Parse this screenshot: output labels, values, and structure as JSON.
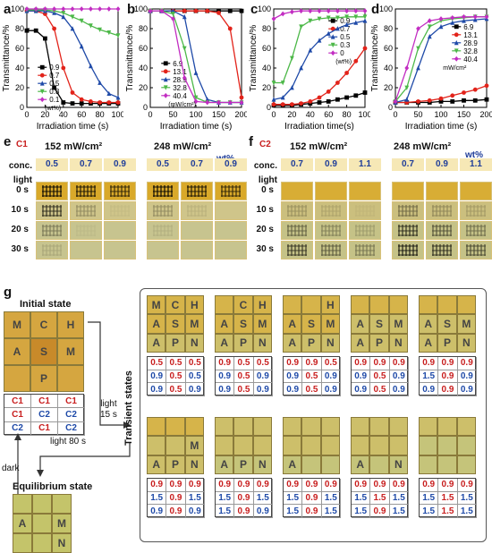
{
  "panel_labels": [
    "a",
    "b",
    "c",
    "d",
    "e",
    "f",
    "g"
  ],
  "chart_data": [
    {
      "type": "line",
      "title": "",
      "xlabel": "Irradiation time (s)",
      "ylabel": "Transmittance/%",
      "xlim": [
        0,
        100
      ],
      "ylim": [
        0,
        100
      ],
      "xticks": [
        0,
        20,
        40,
        60,
        80,
        100
      ],
      "yticks": [
        0,
        20,
        40,
        60,
        80,
        100
      ],
      "legend_unit": "(wt%)",
      "series": [
        {
          "name": "0.9",
          "color": "#000000",
          "marker": "square",
          "x": [
            0,
            10,
            20,
            30,
            40,
            50,
            60,
            70,
            80,
            90,
            100
          ],
          "y": [
            78,
            78,
            70,
            20,
            5,
            4,
            4,
            4,
            4,
            4,
            4
          ]
        },
        {
          "name": "0.7",
          "color": "#e2231a",
          "marker": "circle",
          "x": [
            0,
            10,
            20,
            30,
            40,
            50,
            60,
            70,
            80,
            90,
            100
          ],
          "y": [
            98,
            98,
            95,
            80,
            40,
            15,
            8,
            6,
            5,
            5,
            5
          ]
        },
        {
          "name": "0.5",
          "color": "#1f4aa8",
          "marker": "triangle",
          "x": [
            0,
            10,
            20,
            30,
            40,
            50,
            60,
            70,
            80,
            90,
            100
          ],
          "y": [
            98,
            98,
            98,
            96,
            92,
            80,
            62,
            42,
            25,
            14,
            10
          ]
        },
        {
          "name": "0.3",
          "color": "#4cb848",
          "marker": "triangle-down",
          "x": [
            0,
            10,
            20,
            30,
            40,
            50,
            60,
            70,
            80,
            90,
            100
          ],
          "y": [
            99,
            99,
            99,
            98,
            96,
            92,
            88,
            83,
            79,
            76,
            73
          ]
        },
        {
          "name": "0.1",
          "color": "#c22dc2",
          "marker": "diamond",
          "x": [
            0,
            10,
            20,
            30,
            40,
            50,
            60,
            70,
            80,
            90,
            100
          ],
          "y": [
            100,
            100,
            100,
            100,
            100,
            100,
            100,
            100,
            100,
            100,
            100
          ]
        }
      ]
    },
    {
      "type": "line",
      "title": "",
      "xlabel": "Irradiation time (s)",
      "ylabel": "Transmittance/%",
      "xlim": [
        0,
        200
      ],
      "ylim": [
        0,
        100
      ],
      "xticks": [
        0,
        50,
        100,
        150,
        200
      ],
      "yticks": [
        0,
        20,
        40,
        60,
        80,
        100
      ],
      "legend_unit": "(mW/cm²)",
      "series": [
        {
          "name": "6.9",
          "color": "#000000",
          "marker": "square",
          "x": [
            0,
            25,
            50,
            75,
            100,
            125,
            150,
            175,
            200
          ],
          "y": [
            98,
            98,
            98,
            98,
            98,
            98,
            98,
            98,
            98
          ]
        },
        {
          "name": "13.1",
          "color": "#e2231a",
          "marker": "circle",
          "x": [
            0,
            25,
            50,
            75,
            100,
            125,
            150,
            175,
            200
          ],
          "y": [
            98,
            98,
            98,
            98,
            98,
            98,
            96,
            80,
            10
          ]
        },
        {
          "name": "28.9",
          "color": "#1f4aa8",
          "marker": "triangle",
          "x": [
            0,
            25,
            50,
            75,
            100,
            125,
            150,
            175,
            200
          ],
          "y": [
            98,
            98,
            98,
            92,
            35,
            8,
            5,
            5,
            5
          ]
        },
        {
          "name": "32.8",
          "color": "#4cb848",
          "marker": "triangle-down",
          "x": [
            0,
            25,
            50,
            75,
            100,
            125,
            150,
            175,
            200
          ],
          "y": [
            98,
            98,
            95,
            60,
            10,
            5,
            5,
            5,
            5
          ]
        },
        {
          "name": "40.4",
          "color": "#c22dc2",
          "marker": "diamond",
          "x": [
            0,
            25,
            50,
            75,
            100,
            125,
            150,
            175,
            200
          ],
          "y": [
            98,
            98,
            90,
            30,
            6,
            5,
            5,
            5,
            5
          ]
        }
      ]
    },
    {
      "type": "line",
      "title": "",
      "xlabel": "Irradiation time(s)",
      "ylabel": "Transmittance/%",
      "xlim": [
        0,
        100
      ],
      "ylim": [
        0,
        100
      ],
      "xticks": [
        0,
        20,
        40,
        60,
        80,
        100
      ],
      "yticks": [
        0,
        20,
        40,
        60,
        80,
        100
      ],
      "legend_unit": "(wt%)",
      "series": [
        {
          "name": "0.9",
          "color": "#000000",
          "marker": "square",
          "x": [
            0,
            10,
            20,
            30,
            40,
            50,
            60,
            70,
            80,
            90,
            100
          ],
          "y": [
            2,
            2,
            2,
            3,
            4,
            5,
            6,
            8,
            10,
            12,
            15
          ]
        },
        {
          "name": "0.7",
          "color": "#e2231a",
          "marker": "circle",
          "x": [
            0,
            10,
            20,
            30,
            40,
            50,
            60,
            70,
            80,
            90,
            100
          ],
          "y": [
            3,
            3,
            3,
            4,
            6,
            10,
            16,
            25,
            35,
            47,
            60
          ]
        },
        {
          "name": "0.5",
          "color": "#1f4aa8",
          "marker": "triangle",
          "x": [
            0,
            10,
            20,
            30,
            40,
            50,
            60,
            70,
            80,
            90,
            100
          ],
          "y": [
            8,
            10,
            20,
            40,
            58,
            68,
            75,
            80,
            84,
            86,
            88
          ]
        },
        {
          "name": "0.3",
          "color": "#4cb848",
          "marker": "triangle-down",
          "x": [
            0,
            10,
            20,
            30,
            40,
            50,
            60,
            70,
            80,
            90,
            100
          ],
          "y": [
            25,
            25,
            50,
            82,
            88,
            90,
            91,
            91,
            92,
            92,
            92
          ]
        },
        {
          "name": "0",
          "color": "#c22dc2",
          "marker": "diamond",
          "x": [
            0,
            10,
            20,
            30,
            40,
            50,
            60,
            70,
            80,
            90,
            100
          ],
          "y": [
            90,
            95,
            97,
            98,
            98,
            98,
            98,
            98,
            98,
            98,
            98
          ]
        }
      ]
    },
    {
      "type": "line",
      "title": "",
      "xlabel": "Irradiation time (s)",
      "ylabel": "Transmittance/%",
      "xlim": [
        0,
        200
      ],
      "ylim": [
        0,
        100
      ],
      "xticks": [
        0,
        50,
        100,
        150,
        200
      ],
      "yticks": [
        0,
        20,
        40,
        60,
        80,
        100
      ],
      "legend_unit": "mW/cm²",
      "series": [
        {
          "name": "6.9",
          "color": "#000000",
          "marker": "square",
          "x": [
            0,
            25,
            50,
            75,
            100,
            125,
            150,
            175,
            200
          ],
          "y": [
            5,
            5,
            5,
            5,
            6,
            6,
            7,
            7,
            8
          ]
        },
        {
          "name": "13.1",
          "color": "#e2231a",
          "marker": "circle",
          "x": [
            0,
            25,
            50,
            75,
            100,
            125,
            150,
            175,
            200
          ],
          "y": [
            5,
            5,
            6,
            7,
            9,
            12,
            15,
            18,
            22
          ]
        },
        {
          "name": "28.9",
          "color": "#1f4aa8",
          "marker": "triangle",
          "x": [
            0,
            25,
            50,
            75,
            100,
            125,
            150,
            175,
            200
          ],
          "y": [
            5,
            8,
            40,
            72,
            82,
            86,
            88,
            89,
            90
          ]
        },
        {
          "name": "32.8",
          "color": "#4cb848",
          "marker": "triangle-down",
          "x": [
            0,
            25,
            50,
            75,
            100,
            125,
            150,
            175,
            200
          ],
          "y": [
            6,
            20,
            60,
            82,
            88,
            90,
            91,
            92,
            92
          ]
        },
        {
          "name": "40.4",
          "color": "#c22dc2",
          "marker": "diamond",
          "x": [
            0,
            25,
            50,
            75,
            100,
            125,
            150,
            175,
            200
          ],
          "y": [
            6,
            40,
            80,
            88,
            90,
            91,
            92,
            92,
            92
          ]
        }
      ]
    }
  ],
  "panel_e": {
    "label": "C1",
    "intensities": [
      "152 mW/cm²",
      "248 mW/cm²"
    ],
    "unit": "wt%",
    "conc_label": "conc.",
    "light_label": "light",
    "concs": [
      "0.5",
      "0.7",
      "0.9"
    ],
    "times": [
      "0 s",
      "10 s",
      "20 s",
      "30 s"
    ]
  },
  "panel_f": {
    "label": "C2",
    "intensities": [
      "152 mW/cm²",
      "248 mW/cm²"
    ],
    "unit": "wt%",
    "conc_label": "conc.",
    "light_label": "light",
    "concs": [
      "0.7",
      "0.9",
      "1.1"
    ],
    "times": [
      "0 s",
      "10 s",
      "20 s",
      "30 s"
    ]
  },
  "panel_g": {
    "initial_label": "Initial state",
    "equilibrium_label": "Equilibrium state",
    "transient_label": "Transient states",
    "light1": "light\n15 s",
    "light2": "light 80 s",
    "dark": "dark",
    "initial_letters": [
      [
        "M",
        "C",
        "H"
      ],
      [
        "A",
        "S",
        "M"
      ],
      [
        "",
        "P",
        ""
      ]
    ],
    "initial_table": [
      [
        "C1",
        "C1",
        "C1"
      ],
      [
        "C1",
        "C2",
        "C2"
      ],
      [
        "C2",
        "C1",
        "C2"
      ]
    ],
    "equilibrium_letters": [
      [
        "",
        "",
        ""
      ],
      [
        "A",
        "",
        "M"
      ],
      [
        "",
        "",
        "N"
      ]
    ],
    "transient_letters": [
      [
        [
          "M",
          "C",
          "H"
        ],
        [
          "A",
          "S",
          "M"
        ],
        [
          "A",
          "P",
          "N"
        ]
      ],
      [
        [
          "",
          "C",
          "H"
        ],
        [
          "A",
          "S",
          "M"
        ],
        [
          "A",
          "P",
          "N"
        ]
      ],
      [
        [
          "",
          "",
          "H"
        ],
        [
          "A",
          "S",
          "M"
        ],
        [
          "A",
          "P",
          "N"
        ]
      ],
      [
        [
          "",
          "",
          ""
        ],
        [
          "A",
          "S",
          "M"
        ],
        [
          "A",
          "P",
          "N"
        ]
      ],
      [
        [
          "",
          "",
          ""
        ],
        [
          "A",
          "S",
          "M"
        ],
        [
          "A",
          "P",
          "N"
        ]
      ],
      [
        [
          "",
          "",
          ""
        ],
        [
          "",
          "",
          "M"
        ],
        [
          "A",
          "P",
          "N"
        ]
      ],
      [
        [
          "",
          "",
          ""
        ],
        [
          "",
          "",
          ""
        ],
        [
          "A",
          "P",
          "N"
        ]
      ],
      [
        [
          "",
          "",
          ""
        ],
        [
          "",
          "",
          ""
        ],
        [
          "A",
          "",
          ""
        ]
      ],
      [
        [
          "",
          "",
          ""
        ],
        [
          "",
          "",
          ""
        ],
        [
          "A",
          "",
          "N"
        ]
      ],
      [
        [
          "",
          "",
          ""
        ],
        [
          "",
          "",
          ""
        ],
        [
          "",
          "",
          ""
        ]
      ]
    ],
    "transient_tables": [
      [
        [
          "0.5",
          "0.5",
          "0.5"
        ],
        [
          "0.9",
          "0.5",
          "0.5"
        ],
        [
          "0.9",
          "0.5",
          "0.9"
        ]
      ],
      [
        [
          "0.9",
          "0.5",
          "0.5"
        ],
        [
          "0.9",
          "0.5",
          "0.9"
        ],
        [
          "0.9",
          "0.5",
          "0.9"
        ]
      ],
      [
        [
          "0.9",
          "0.9",
          "0.5"
        ],
        [
          "0.9",
          "0.5",
          "0.9"
        ],
        [
          "0.9",
          "0.5",
          "0.9"
        ]
      ],
      [
        [
          "0.9",
          "0.9",
          "0.9"
        ],
        [
          "0.9",
          "0.5",
          "0.9"
        ],
        [
          "0.9",
          "0.5",
          "0.9"
        ]
      ],
      [
        [
          "0.9",
          "0.9",
          "0.9"
        ],
        [
          "1.5",
          "0.9",
          "0.9"
        ],
        [
          "0.9",
          "0.9",
          "0.9"
        ]
      ],
      [
        [
          "0.9",
          "0.9",
          "0.9"
        ],
        [
          "1.5",
          "0.9",
          "1.5"
        ],
        [
          "0.9",
          "0.9",
          "0.9"
        ]
      ],
      [
        [
          "0.9",
          "0.9",
          "0.9"
        ],
        [
          "1.5",
          "0.9",
          "1.5"
        ],
        [
          "1.5",
          "0.9",
          "0.9"
        ]
      ],
      [
        [
          "0.9",
          "0.9",
          "0.9"
        ],
        [
          "1.5",
          "0.9",
          "1.5"
        ],
        [
          "1.5",
          "0.9",
          "1.5"
        ]
      ],
      [
        [
          "0.9",
          "0.9",
          "0.9"
        ],
        [
          "1.5",
          "1.5",
          "1.5"
        ],
        [
          "1.5",
          "0.9",
          "1.5"
        ]
      ],
      [
        [
          "0.9",
          "0.9",
          "0.9"
        ],
        [
          "1.5",
          "1.5",
          "1.5"
        ],
        [
          "1.5",
          "1.5",
          "1.5"
        ]
      ]
    ],
    "table_colors": [
      [
        "r",
        "r",
        "r"
      ],
      [
        "b",
        "r",
        "b"
      ],
      [
        "b",
        "r",
        "b"
      ]
    ]
  }
}
